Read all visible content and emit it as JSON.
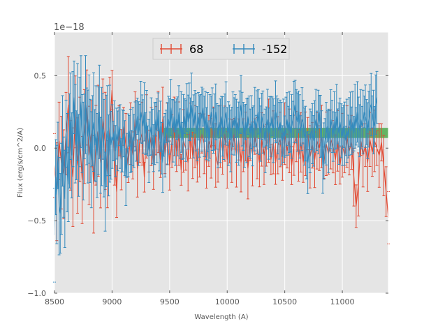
{
  "chart_data": {
    "type": "line",
    "title": "",
    "xlabel": "Wavelength (A)",
    "ylabel": "Flux (erg/s/cm^2/A)",
    "y_offset_text": "1e−18",
    "xlim": [
      8500,
      11400
    ],
    "ylim": [
      -1.0,
      0.8
    ],
    "x_ticks": [
      8500,
      9000,
      9500,
      10000,
      10500,
      11000
    ],
    "x_tick_labels": [
      "8500",
      "9000",
      "9500",
      "10000",
      "10500",
      "11000"
    ],
    "y_ticks": [
      -1.0,
      -0.5,
      0.0,
      0.5
    ],
    "y_tick_labels": [
      "−1.0",
      "−0.5",
      "0.0",
      "0.5"
    ],
    "grid": true,
    "legend_position": "top-center",
    "band": {
      "x": [
        9450,
        11400
      ],
      "y": [
        0.07,
        0.14
      ],
      "color": "#2ca02c"
    },
    "series": [
      {
        "name": "68",
        "color": "#E24A33",
        "x_start": 8500,
        "x_step": 20,
        "values": [
          -0.12,
          -0.3,
          0.05,
          -0.1,
          -0.18,
          0.1,
          0.3,
          -0.05,
          -0.2,
          0.25,
          -0.12,
          0.06,
          -0.22,
          0.08,
          0.28,
          -0.05,
          0.1,
          -0.25,
          0.02,
          0.12,
          -0.1,
          0.2,
          0.05,
          -0.18,
          0.15,
          0.4,
          -0.05,
          -0.3,
          0.12,
          -0.08,
          0.15,
          0.02,
          -0.12,
          0.1,
          -0.05,
          0.2,
          -0.14,
          0.05,
          0.1,
          -0.2,
          0.15,
          -0.02,
          0.08,
          -0.1,
          0.12,
          0.18,
          -0.08,
          0.2,
          -0.05,
          0.1,
          -0.12,
          0.05,
          0.15,
          -0.02,
          0.1,
          -0.15,
          0.05,
          0.0,
          -0.1,
          0.12,
          -0.05,
          0.08,
          -0.12,
          0.02,
          0.1,
          0.03,
          -0.1,
          0.05,
          0.0,
          0.15,
          -0.05,
          -0.12,
          0.08,
          -0.02,
          0.1,
          -0.08,
          0.05,
          -0.02,
          0.1,
          -0.05,
          0.06,
          -0.1,
          0.02,
          0.08,
          -0.14,
          0.04,
          -0.04,
          0.08,
          0.0,
          -0.1,
          0.06,
          -0.05,
          0.02,
          0.12,
          -0.08,
          0.04,
          -0.1,
          0.02,
          0.06,
          -0.06,
          0.1,
          -0.02,
          0.05,
          -0.12,
          0.02,
          0.08,
          -0.05,
          0.04,
          -0.1,
          0.03,
          0.1,
          -0.06,
          0.02,
          -0.08,
          0.05,
          0.0,
          0.08,
          -0.1,
          0.03,
          -0.04,
          0.06,
          0.01,
          -0.08,
          0.05,
          -0.12,
          0.02,
          -0.05,
          0.08,
          -0.02,
          0.04,
          -0.2,
          -0.4,
          -0.25,
          0.05,
          -0.05,
          0.02,
          -0.1,
          0.06,
          -0.03,
          0.05,
          0.0,
          -0.05,
          0.04,
          -0.12,
          -0.3,
          -0.48
        ]
      },
      {
        "name": "-152",
        "color": "#348ABD",
        "x_start": 8500,
        "x_step": 10,
        "values": [
          -0.6,
          -0.2,
          -0.32,
          -0.05,
          -0.4,
          -0.45,
          -0.28,
          0.05,
          -0.2,
          -0.35,
          0.1,
          -0.1,
          -0.25,
          0.05,
          0.22,
          -0.05,
          0.2,
          0.35,
          0.1,
          0.02,
          0.25,
          -0.05,
          0.18,
          0.32,
          0.1,
          -0.02,
          0.15,
          0.3,
          0.15,
          0.08,
          0.2,
          0.05,
          -0.08,
          0.12,
          0.18,
          0.02,
          0.1,
          -0.05,
          0.12,
          0.25,
          -0.05,
          0.08,
          0.15,
          0.0,
          -0.3,
          0.05,
          0.12,
          -0.05,
          0.1,
          0.02,
          0.08,
          0.05,
          0.12,
          -0.02,
          0.1,
          0.05,
          0.15,
          0.08,
          -0.05,
          0.05,
          0.1,
          0.0,
          -0.2,
          -0.05,
          0.02,
          0.12,
          0.05,
          -0.02,
          0.08,
          0.05,
          0.15,
          0.12,
          0.22,
          0.1,
          0.18,
          0.25,
          0.2,
          0.15,
          0.25,
          0.1,
          0.18,
          0.05,
          -0.02,
          0.1,
          0.15,
          0.08,
          0.0,
          0.1,
          0.2,
          0.12,
          0.25,
          0.05,
          0.15,
          0.0,
          -0.1,
          0.08,
          0.02,
          0.15,
          0.1,
          0.2,
          0.15,
          0.28,
          0.18,
          0.12,
          0.22,
          0.1,
          0.2,
          0.15,
          0.25,
          0.1,
          0.18,
          0.05,
          0.15,
          0.22,
          0.12,
          0.28,
          0.18,
          0.25,
          0.2,
          0.3,
          0.22,
          0.15,
          0.25,
          0.18,
          0.1,
          0.22,
          0.15,
          0.25,
          0.2,
          0.28,
          0.15,
          0.22,
          0.1,
          0.18,
          0.05,
          0.15,
          0.25,
          0.2,
          0.12,
          0.18,
          0.25,
          0.15,
          0.08,
          0.18,
          0.12,
          0.22,
          0.15,
          0.1,
          0.2,
          0.25,
          0.15,
          0.1,
          0.18,
          0.05,
          0.12,
          0.2,
          0.15,
          0.22,
          0.12,
          0.18,
          0.1,
          0.25,
          0.3,
          0.2,
          0.15,
          0.08,
          0.18,
          0.12,
          0.22,
          0.15,
          0.1,
          0.18,
          0.08,
          0.15,
          0.2,
          0.12,
          0.18,
          0.25,
          0.15,
          0.1,
          0.22,
          0.18,
          0.12,
          0.05,
          0.15,
          0.2,
          0.1,
          0.18,
          0.15,
          0.22,
          0.12,
          0.18,
          0.25,
          0.2,
          0.15,
          0.12,
          0.18,
          0.1,
          0.05,
          0.12,
          0.08,
          0.15,
          0.2,
          0.12,
          0.18,
          0.1,
          0.15,
          0.2,
          0.25,
          0.3,
          0.22,
          0.18,
          0.25,
          0.15,
          0.12,
          0.2,
          0.18,
          0.08,
          0.1,
          -0.05,
          -0.1,
          -0.02,
          0.05,
          0.12,
          0.1,
          0.05,
          0.15,
          0.2,
          0.12,
          0.18,
          0.25,
          0.15,
          0.1,
          -0.12,
          -0.02,
          0.05,
          0.1,
          0.15,
          0.05,
          0.12,
          0.2,
          0.15,
          0.08,
          0.18,
          0.12,
          0.22,
          0.15,
          0.1,
          0.18,
          0.12,
          0.08,
          0.15,
          0.1,
          0.05,
          0.12,
          0.08,
          0.15,
          0.2,
          0.12,
          0.18,
          0.1,
          0.22,
          0.15,
          0.25,
          0.18,
          0.12,
          0.2,
          0.15,
          0.18,
          0.25,
          0.22,
          0.18,
          0.12,
          0.2,
          0.28,
          0.3,
          0.25,
          0.18,
          0.15,
          0.3,
          0.35
        ]
      }
    ]
  }
}
